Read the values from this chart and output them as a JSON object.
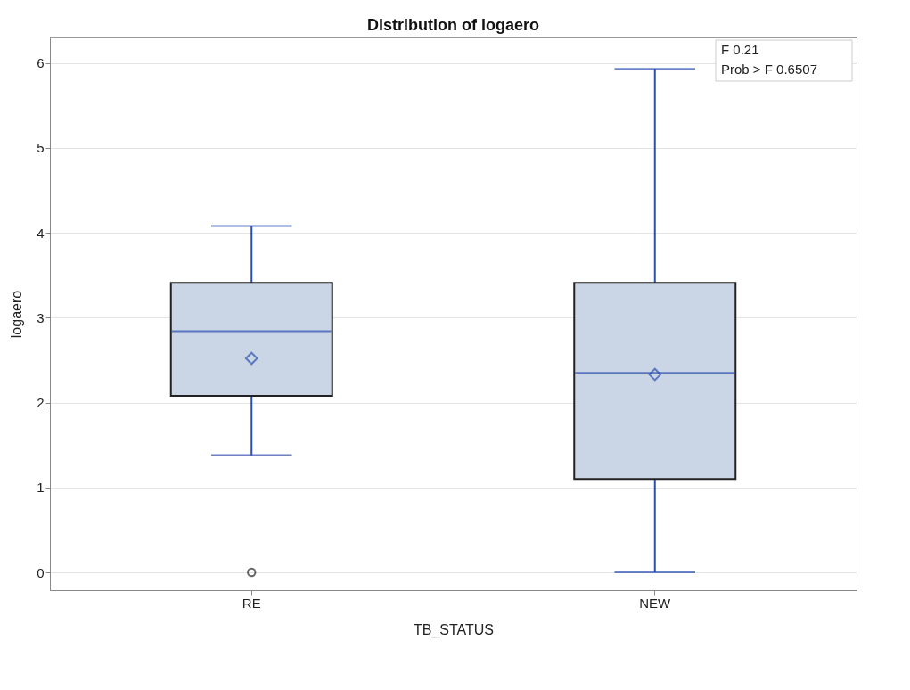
{
  "chart_data": {
    "type": "box",
    "title": "Distribution of logaero",
    "xlabel": "TB_STATUS",
    "ylabel": "logaero",
    "categories": [
      "RE",
      "NEW"
    ],
    "series": [
      {
        "color": "#cad5e5",
        "boxes": [
          {
            "low": 1.38,
            "q1": 2.08,
            "median": 2.84,
            "q3": 3.41,
            "high": 4.08,
            "mean": 2.52,
            "outliers": [
              0
            ]
          },
          {
            "low": 0,
            "q1": 1.1,
            "median": 2.35,
            "q3": 3.41,
            "high": 5.93,
            "mean": 2.33
          }
        ]
      }
    ],
    "ylim": [
      -0.21,
      6.3
    ],
    "yticks": [
      0,
      1,
      2,
      3,
      4,
      5,
      6
    ],
    "grid": "y",
    "annotations": [
      "F 0.21",
      "Prob > F 0.6507"
    ]
  }
}
